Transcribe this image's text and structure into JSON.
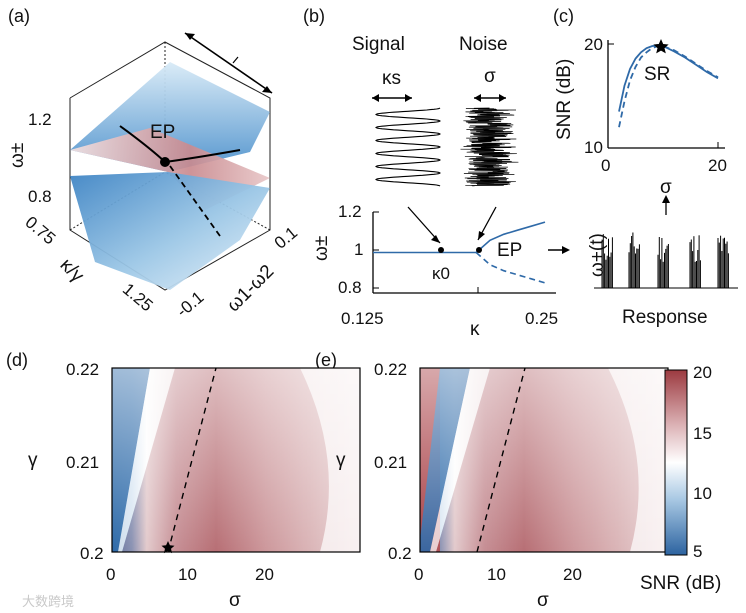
{
  "panels": {
    "a": "(a)",
    "b": "(b)",
    "c": "(c)",
    "d": "(d)",
    "e": "(e)"
  },
  "panel_a": {
    "ep_label": "EP",
    "y_label": "ω±",
    "x_label": "κ/γ",
    "z_label": "ω1-ω2",
    "y_ticks": [
      "1.2",
      "0.8"
    ],
    "x_ticks": [
      "0.75",
      "1.25"
    ],
    "z_ticks": [
      "0.1",
      "-0.1"
    ]
  },
  "panel_b": {
    "signal_title": "Signal",
    "noise_title": "Noise",
    "signal_param": "κs",
    "noise_param": "σ",
    "y_label": "ω±",
    "x_label": "κ",
    "y_ticks": [
      "1.2",
      "1",
      "0.8"
    ],
    "x_ticks": [
      "0.125",
      "0.25"
    ],
    "kappa0_label": "κ0",
    "ep_label": "EP"
  },
  "panel_c": {
    "y_label": "SNR (dB)",
    "x_label": "σ",
    "sr_label": "SR",
    "response_label": "Response",
    "response_y_label": "ω+(t)",
    "y_ticks": [
      "20",
      "10"
    ],
    "x_ticks": [
      "0",
      "20"
    ]
  },
  "heatmaps": {
    "d": {
      "x_label": "σ",
      "y_label": "γ",
      "y_ticks": [
        "0.22",
        "0.21",
        "0.2"
      ],
      "x_ticks": [
        "0",
        "10",
        "20"
      ]
    },
    "e": {
      "x_label": "σ",
      "y_label": "γ",
      "y_ticks": [
        "0.22",
        "0.21",
        "0.2"
      ],
      "x_ticks": [
        "0",
        "10",
        "20"
      ]
    }
  },
  "colorbar": {
    "label": "SNR (dB)",
    "ticks": [
      "20",
      "15",
      "10",
      "5"
    ],
    "colors": [
      "#a83f45",
      "#f2e6e4",
      "#ffffff",
      "#cfe2ef",
      "#2f6aa8"
    ]
  },
  "watermark": "大数跨境",
  "chart_data": [
    {
      "type": "line",
      "title": "",
      "xlabel": "σ",
      "ylabel": "SNR (dB)",
      "xlim": [
        0,
        20
      ],
      "ylim": [
        10,
        20
      ],
      "series": [
        {
          "x": [
            2,
            3,
            4,
            5,
            6,
            7,
            8,
            9,
            10,
            12,
            14,
            16,
            18,
            20
          ],
          "y": [
            13.5,
            16.0,
            17.6,
            18.6,
            19.2,
            19.6,
            19.8,
            19.9,
            19.8,
            19.3,
            18.7,
            18.0,
            17.3,
            16.7
          ]
        },
        {
          "x": [
            2,
            3,
            4,
            5,
            6,
            7,
            8,
            9,
            10,
            12,
            14,
            16,
            18,
            20
          ],
          "y": [
            12.0,
            14.5,
            16.5,
            17.8,
            18.7,
            19.2,
            19.6,
            19.8,
            19.8,
            19.4,
            18.8,
            18.1,
            17.4,
            16.8
          ]
        }
      ],
      "annotation": {
        "text": "SR",
        "x": 9,
        "y": 20
      }
    },
    {
      "type": "line",
      "title": "",
      "xlabel": "κ",
      "ylabel": "ω±",
      "xlim": [
        0.125,
        0.25
      ],
      "ylim": [
        0.8,
        1.2
      ],
      "series": [
        {
          "x": [
            0.125,
            0.15,
            0.175,
            0.2
          ],
          "y": [
            1.0,
            1.0,
            1.0,
            1.0
          ]
        },
        {
          "x": [
            0.2,
            0.21,
            0.22,
            0.23,
            0.24,
            0.25
          ],
          "y": [
            1.0,
            1.06,
            1.09,
            1.11,
            1.13,
            1.15
          ]
        },
        {
          "x": [
            0.2,
            0.21,
            0.22,
            0.23,
            0.24,
            0.25
          ],
          "y": [
            1.0,
            0.94,
            0.91,
            0.89,
            0.87,
            0.85
          ]
        }
      ]
    },
    {
      "type": "heatmap",
      "title": "",
      "xlabel": "σ",
      "ylabel": "γ",
      "xlim": [
        0,
        25
      ],
      "ylim": [
        0.2,
        0.22
      ],
      "colorbar_range": [
        5,
        20
      ],
      "colorbar_label": "SNR (dB)",
      "optimal_line": {
        "x": [
          7.5,
          14
        ],
        "y": [
          0.2,
          0.22
        ]
      },
      "marker": {
        "x": 7.5,
        "y": 0.2
      }
    },
    {
      "type": "heatmap",
      "title": "",
      "xlabel": "σ",
      "ylabel": "γ",
      "xlim": [
        0,
        25
      ],
      "ylim": [
        0.2,
        0.22
      ],
      "colorbar_range": [
        5,
        20
      ],
      "colorbar_label": "SNR (dB)",
      "optimal_line": {
        "x": [
          7,
          13.5
        ],
        "y": [
          0.2,
          0.22
        ]
      }
    }
  ]
}
